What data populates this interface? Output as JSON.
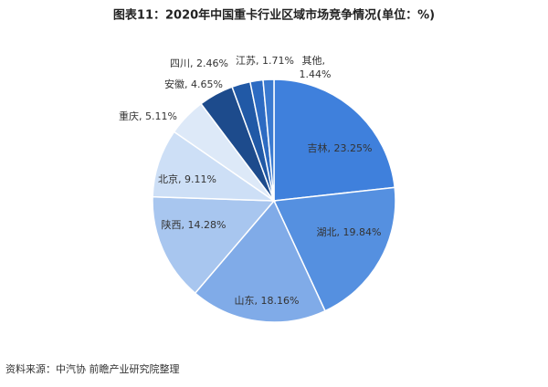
{
  "chart_data": {
    "type": "pie",
    "title": "图表11：2020年中国重卡行业区域市场竞争情况(单位：%)",
    "source": "资料来源：中汽协 前瞻产业研究院整理",
    "label_separator": ", ",
    "categories": [
      "吉林",
      "湖北",
      "山东",
      "陕西",
      "北京",
      "重庆",
      "安徽",
      "四川",
      "江苏",
      "其他"
    ],
    "values": [
      23.25,
      19.84,
      18.16,
      14.28,
      9.11,
      5.11,
      4.65,
      2.46,
      1.71,
      1.44
    ],
    "value_labels": [
      "23.25%",
      "19.84%",
      "18.16%",
      "14.28%",
      "9.11%",
      "5.11%",
      "4.65%",
      "2.46%",
      "1.71%",
      "1.44%"
    ],
    "colors": [
      "#3f80dc",
      "#5590e0",
      "#80abe8",
      "#a8c6ef",
      "#cddff6",
      "#dde9f8",
      "#1d4b8c",
      "#2159a6",
      "#2d6bc2",
      "#3b7ad0"
    ]
  }
}
